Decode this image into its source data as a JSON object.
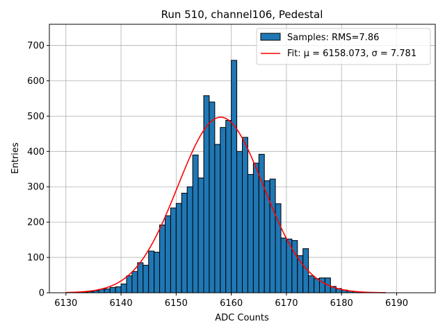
{
  "chart_data": {
    "type": "bar",
    "title": "Run 510, channel106, Pedestal",
    "xlabel": "ADC Counts",
    "ylabel": "Entries",
    "xlim": [
      6127,
      6197
    ],
    "ylim": [
      0,
      760
    ],
    "xticks": [
      6130,
      6140,
      6150,
      6160,
      6170,
      6180,
      6190
    ],
    "yticks": [
      0,
      100,
      200,
      300,
      400,
      500,
      600,
      700
    ],
    "grid": true,
    "legend_position": "top-right",
    "bin_width": 1,
    "colors": {
      "bar_fill": "#1f77b4",
      "bar_edge": "#000000",
      "fit_line": "#ff0000",
      "grid": "#b0b0b0"
    },
    "series": [
      {
        "name": "Samples: RMS=7.86",
        "kind": "histogram",
        "bins": [
          6130,
          6131,
          6132,
          6133,
          6134,
          6135,
          6136,
          6137,
          6138,
          6139,
          6140,
          6141,
          6142,
          6143,
          6144,
          6145,
          6146,
          6147,
          6148,
          6149,
          6150,
          6151,
          6152,
          6153,
          6154,
          6155,
          6156,
          6157,
          6158,
          6159,
          6160,
          6161,
          6162,
          6163,
          6164,
          6165,
          6166,
          6167,
          6168,
          6169,
          6170,
          6171,
          6172,
          6173,
          6174,
          6175,
          6176,
          6177,
          6178,
          6179,
          6180,
          6181,
          6182,
          6183,
          6184,
          6185,
          6186,
          6187
        ],
        "values": [
          0,
          1,
          1,
          2,
          3,
          6,
          10,
          11,
          15,
          17,
          25,
          48,
          60,
          85,
          78,
          118,
          115,
          192,
          218,
          240,
          253,
          282,
          300,
          390,
          325,
          558,
          540,
          420,
          468,
          488,
          658,
          400,
          440,
          335,
          367,
          392,
          317,
          322,
          252,
          155,
          152,
          148,
          105,
          125,
          48,
          40,
          42,
          42,
          18,
          12,
          8,
          5,
          3,
          2,
          1,
          1,
          0,
          0
        ]
      },
      {
        "name": "Fit: μ = 6158.073, σ = 7.781",
        "kind": "gaussian",
        "mu": 6158.073,
        "sigma": 7.781,
        "amplitude": 497,
        "x_range": [
          6130,
          6188
        ]
      }
    ]
  }
}
